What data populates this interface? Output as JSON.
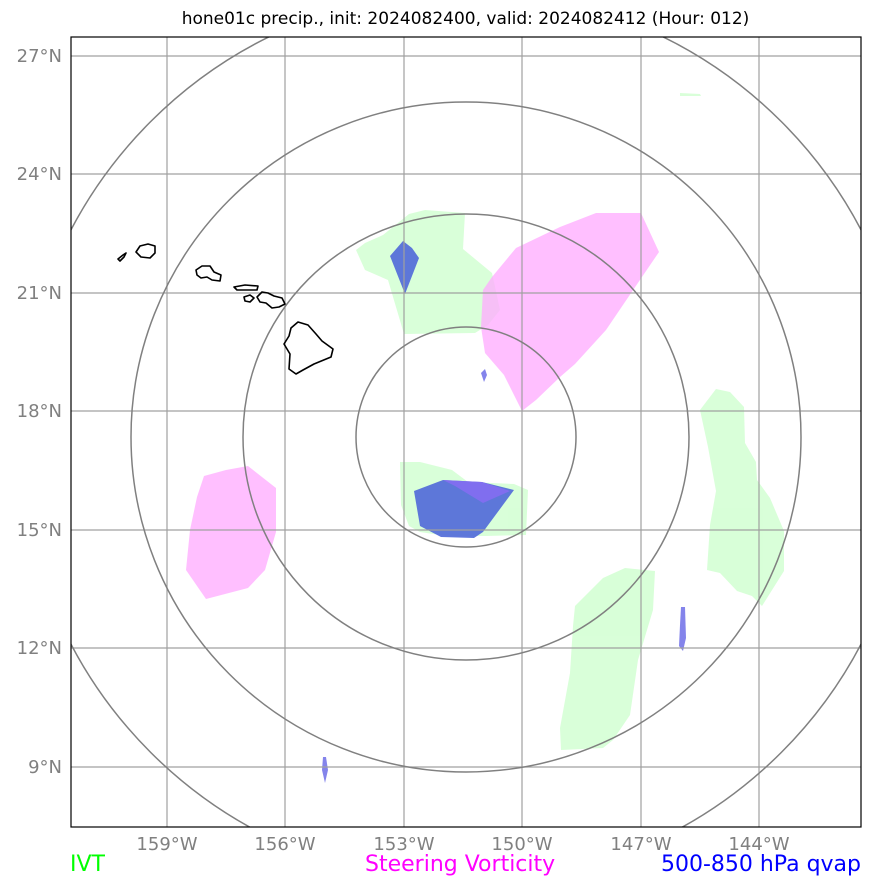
{
  "title": "hone01c precip., init: 2024082400, valid: 2024082412 (Hour: 012)",
  "latitude_labels": [
    "27°N",
    "24°N",
    "21°N",
    "18°N",
    "15°N",
    "12°N",
    "9°N"
  ],
  "longitude_labels": [
    "159°W",
    "156°W",
    "153°W",
    "150°W",
    "147°W",
    "144°W"
  ],
  "legend": {
    "ivt": {
      "label": "IVT",
      "color": "#00ff00"
    },
    "vorticity": {
      "label": "Steering Vorticity",
      "color": "#ff00ff"
    },
    "qvap": {
      "label": "500-850 hPa qvap",
      "color": "#0000ff"
    }
  },
  "colors": {
    "ivt_fill": "#ccffcc",
    "vorticity_fill": "#ffaaff",
    "qvap_fill": "#3355dd",
    "gridline": "#a0a0a0",
    "range_ring": "#808080",
    "coastline": "#000000"
  }
}
